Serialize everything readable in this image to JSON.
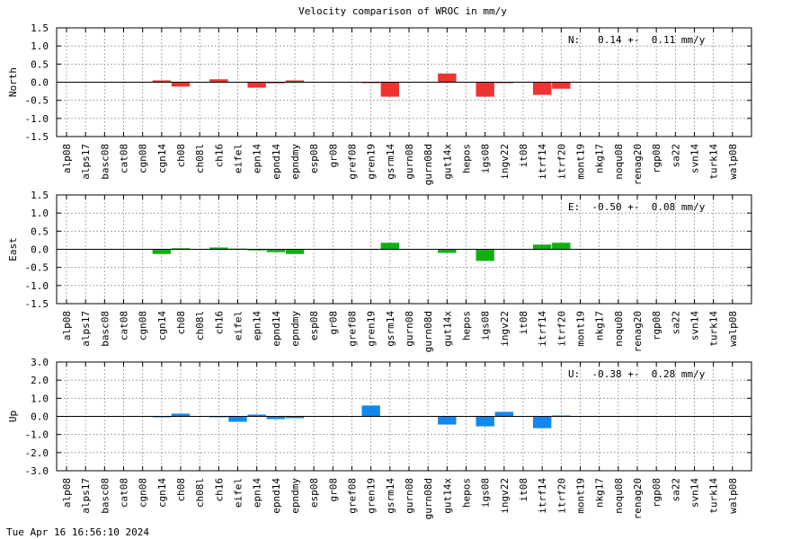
{
  "title": "Velocity comparison of WROC in mm/y",
  "footer": "Tue Apr 16 16:56:10 2024",
  "colors": {
    "north": "#ee3333",
    "east": "#11b011",
    "up": "#1188ee",
    "grid": "#999999"
  },
  "chart_data": [
    {
      "type": "bar",
      "ylabel": "North",
      "annotation": "N:   0.14 +-  0.11 mm/y",
      "ylim": [
        -1.5,
        1.5
      ],
      "yticks": [
        "1.5",
        "1.0",
        "0.5",
        "0.0",
        "-0.5",
        "-1.0",
        "-1.5"
      ],
      "grid": true,
      "color": "#ee3333",
      "categories": [
        "alp08",
        "alps17",
        "basc08",
        "cat08",
        "cgn08",
        "cgn14",
        "ch08",
        "ch08l",
        "ch16",
        "eifel",
        "epn14",
        "epnd14",
        "epndmy",
        "esp08",
        "gr08",
        "gref08",
        "gren19",
        "gsrm14",
        "gurn08",
        "gurn08d",
        "gut14x",
        "hepos",
        "igs08",
        "ingv22",
        "it08",
        "itrf14",
        "itrf20",
        "mont19",
        "nkg17",
        "noqu08",
        "renag20",
        "rgp08",
        "sa22",
        "svn14",
        "turk14",
        "walp08"
      ],
      "values": [
        0,
        0,
        0,
        0,
        0,
        0.05,
        -0.12,
        0,
        0.08,
        0,
        -0.15,
        -0.03,
        0.05,
        0,
        0,
        0,
        -0.02,
        -0.4,
        0,
        0,
        0.24,
        0,
        -0.4,
        -0.02,
        0,
        -0.35,
        -0.18,
        0,
        0,
        0,
        0,
        0,
        0,
        0,
        0,
        0
      ]
    },
    {
      "type": "bar",
      "ylabel": "East",
      "annotation": "E:  -0.50 +-  0.08 mm/y",
      "ylim": [
        -1.5,
        1.5
      ],
      "yticks": [
        "1.5",
        "1.0",
        "0.5",
        "0.0",
        "-0.5",
        "-1.0",
        "-1.5"
      ],
      "grid": true,
      "color": "#11b011",
      "categories": [
        "alp08",
        "alps17",
        "basc08",
        "cat08",
        "cgn08",
        "cgn14",
        "ch08",
        "ch08l",
        "ch16",
        "eifel",
        "epn14",
        "epnd14",
        "epndmy",
        "esp08",
        "gr08",
        "gref08",
        "gren19",
        "gsrm14",
        "gurn08",
        "gurn08d",
        "gut14x",
        "hepos",
        "igs08",
        "ingv22",
        "it08",
        "itrf14",
        "itrf20",
        "mont19",
        "nkg17",
        "noqu08",
        "renag20",
        "rgp08",
        "sa22",
        "svn14",
        "turk14",
        "walp08"
      ],
      "values": [
        0,
        0,
        0,
        0,
        0,
        -0.13,
        0.03,
        0,
        0.05,
        0.02,
        -0.03,
        -0.08,
        -0.13,
        0,
        0,
        0,
        0,
        0.18,
        0,
        0,
        -0.1,
        0,
        -0.32,
        0,
        0,
        0.13,
        0.18,
        0,
        0,
        0,
        0,
        0,
        0,
        0,
        0,
        0
      ]
    },
    {
      "type": "bar",
      "ylabel": "Up",
      "annotation": "U:  -0.38 +-  0.28 mm/y",
      "ylim": [
        -3.0,
        3.0
      ],
      "yticks": [
        "3.0",
        "2.0",
        "1.0",
        "0.0",
        "-1.0",
        "-2.0",
        "-3.0"
      ],
      "grid": true,
      "color": "#1188ee",
      "categories": [
        "alp08",
        "alps17",
        "basc08",
        "cat08",
        "cgn08",
        "cgn14",
        "ch08",
        "ch08l",
        "ch16",
        "eifel",
        "epn14",
        "epnd14",
        "epndmy",
        "esp08",
        "gr08",
        "gref08",
        "gren19",
        "gsrm14",
        "gurn08",
        "gurn08d",
        "gut14x",
        "hepos",
        "igs08",
        "ingv22",
        "it08",
        "itrf14",
        "itrf20",
        "mont19",
        "nkg17",
        "noqu08",
        "renag20",
        "rgp08",
        "sa22",
        "svn14",
        "turk14",
        "walp08"
      ],
      "values": [
        0,
        0,
        0,
        0,
        0,
        -0.05,
        0.15,
        0,
        -0.05,
        -0.3,
        0.1,
        -0.15,
        -0.1,
        0,
        0,
        0,
        0.6,
        0,
        0,
        0,
        -0.45,
        0,
        -0.55,
        0.25,
        0,
        -0.65,
        0.05,
        0,
        0,
        0,
        0,
        0,
        0,
        0,
        0,
        0
      ]
    }
  ]
}
